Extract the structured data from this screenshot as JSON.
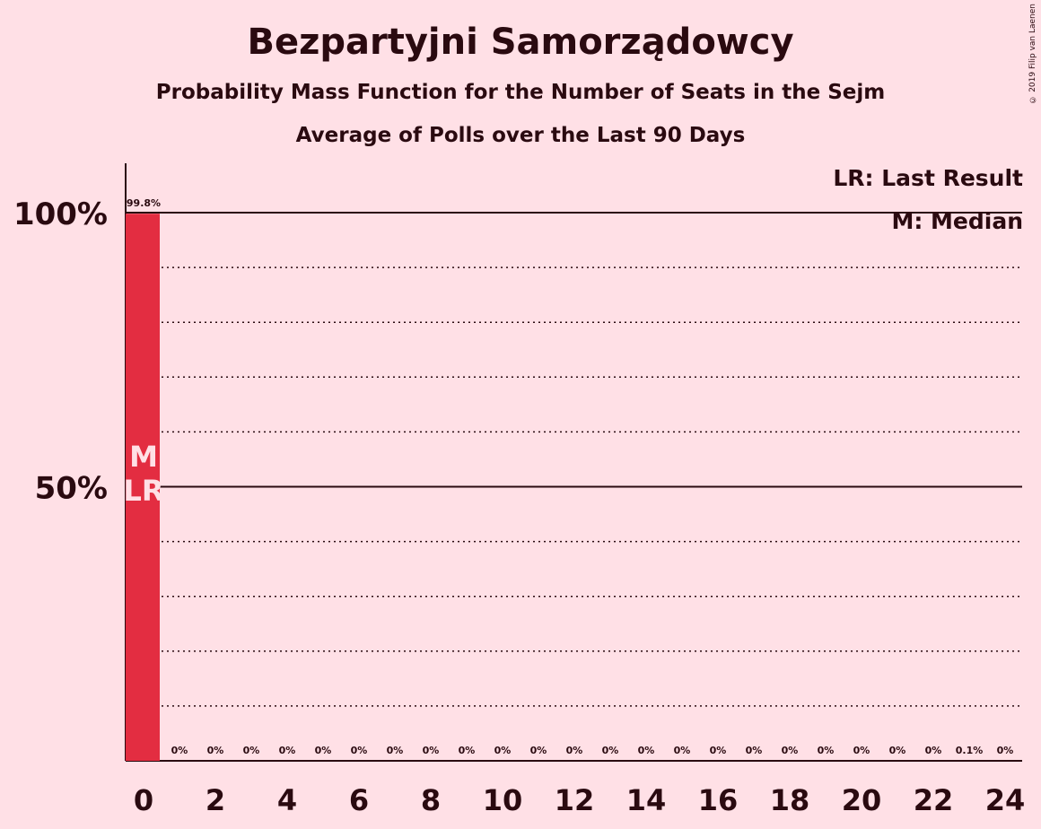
{
  "title": "Bezpartyjni Samorządowcy",
  "subtitle": "Probability Mass Function for the Number of Seats in the Sejm",
  "subtitle2": "Average of Polls over the Last 90 Days",
  "copyright": "© 2019 Filip van Laenen",
  "legend": {
    "last_result": "LR: Last Result",
    "median": "M: Median"
  },
  "colors": {
    "background": "#ffe0e6",
    "bar": "#e32d41",
    "text": "#2a0a10",
    "marker_text": "#ffe0e6"
  },
  "chart_data": {
    "type": "bar",
    "x": [
      0,
      1,
      2,
      3,
      4,
      5,
      6,
      7,
      8,
      9,
      10,
      11,
      12,
      13,
      14,
      15,
      16,
      17,
      18,
      19,
      20,
      21,
      22,
      23,
      24
    ],
    "values": [
      99.8,
      0,
      0,
      0,
      0,
      0,
      0,
      0,
      0,
      0,
      0,
      0,
      0,
      0,
      0,
      0,
      0,
      0,
      0,
      0,
      0,
      0,
      0,
      0.1,
      0
    ],
    "value_labels": [
      "99.8%",
      "0%",
      "0%",
      "0%",
      "0%",
      "0%",
      "0%",
      "0%",
      "0%",
      "0%",
      "0%",
      "0%",
      "0%",
      "0%",
      "0%",
      "0%",
      "0%",
      "0%",
      "0%",
      "0%",
      "0%",
      "0%",
      "0%",
      "0.1%",
      "0%"
    ],
    "x_tick_labels": [
      "0",
      "2",
      "4",
      "6",
      "8",
      "10",
      "12",
      "14",
      "16",
      "18",
      "20",
      "22",
      "24"
    ],
    "y_tick_labels": [
      "100%",
      "50%"
    ],
    "ylim": [
      0,
      100
    ],
    "grid": "dotted every 10%, solid at 50% and 100%",
    "median_seat": 0,
    "last_result_seat": 0,
    "median_marker": "M",
    "last_result_marker": "LR"
  }
}
